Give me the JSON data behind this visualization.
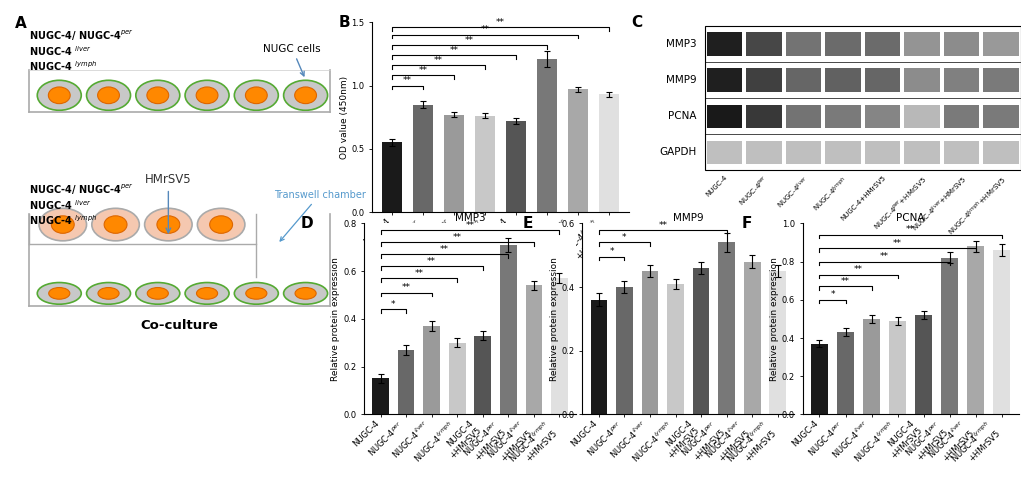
{
  "panel_B": {
    "ylabel": "OD value (450nm)",
    "ylim": [
      0,
      1.5
    ],
    "yticks": [
      0.0,
      0.5,
      1.0,
      1.5
    ],
    "categories": [
      "NUGC-4",
      "NUGC-4$^{per}$",
      "NUGC-4$^{liver}$",
      "NUGC-4$^{lymph}$",
      "NUGC-4\n+HMrSV5",
      "NUGC-4$^{per}$\n+HMrSV5",
      "NUGC-4$^{liver}$\n+HMrSV5",
      "NUGC-4$^{lymph}$\n+HMrSV5"
    ],
    "values": [
      0.55,
      0.85,
      0.77,
      0.76,
      0.72,
      1.21,
      0.97,
      0.93
    ],
    "errors": [
      0.03,
      0.03,
      0.02,
      0.02,
      0.02,
      0.06,
      0.02,
      0.02
    ],
    "colors": [
      "#1a1a1a",
      "#686868",
      "#9a9a9a",
      "#c8c8c8",
      "#555555",
      "#787878",
      "#a8a8a8",
      "#e0e0e0"
    ],
    "sig_brackets": [
      [
        0,
        1,
        "**",
        1.0
      ],
      [
        0,
        2,
        "**",
        1.08
      ],
      [
        0,
        3,
        "**",
        1.16
      ],
      [
        0,
        4,
        "**",
        1.24
      ],
      [
        0,
        5,
        "**",
        1.32
      ],
      [
        0,
        6,
        "**",
        1.4
      ],
      [
        0,
        7,
        "**",
        1.46
      ]
    ]
  },
  "panel_D": {
    "title": "MMP3",
    "panel_label": "D",
    "ylabel": "Relative protein expression",
    "ylim": [
      0,
      0.8
    ],
    "yticks": [
      0.0,
      0.2,
      0.4,
      0.6,
      0.8
    ],
    "categories": [
      "NUGC-4",
      "NUGC-4$^{per}$",
      "NUGC-4$^{liver}$",
      "NUGC-4$^{lymph}$",
      "NUGC-4\n+HMrSV5",
      "NUGC-4$^{per}$\n+HMrSV5",
      "NUGC-4$^{liver}$\n+HMrSV5",
      "NUGC-4$^{lymph}$\n+HMrSV5"
    ],
    "values": [
      0.15,
      0.27,
      0.37,
      0.3,
      0.33,
      0.71,
      0.54,
      0.57
    ],
    "errors": [
      0.02,
      0.02,
      0.02,
      0.02,
      0.02,
      0.03,
      0.02,
      0.02
    ],
    "colors": [
      "#1a1a1a",
      "#686868",
      "#9a9a9a",
      "#c8c8c8",
      "#555555",
      "#787878",
      "#a8a8a8",
      "#e0e0e0"
    ],
    "sig_brackets": [
      [
        0,
        1,
        "*",
        0.44
      ],
      [
        0,
        2,
        "**",
        0.51
      ],
      [
        0,
        3,
        "**",
        0.57
      ],
      [
        0,
        4,
        "**",
        0.62
      ],
      [
        0,
        5,
        "**",
        0.67
      ],
      [
        0,
        6,
        "**",
        0.72
      ],
      [
        0,
        7,
        "**",
        0.77
      ]
    ]
  },
  "panel_E": {
    "title": "MMP9",
    "panel_label": "E",
    "ylabel": "Relative protein expression",
    "ylim": [
      0,
      0.6
    ],
    "yticks": [
      0.0,
      0.2,
      0.4,
      0.6
    ],
    "categories": [
      "NUGC-4",
      "NUGC-4$^{per}$",
      "NUGC-4$^{liver}$",
      "NUGC-4$^{lymph}$",
      "NUGC-4\n+HMrSV5",
      "NUGC-4$^{per}$\n+HMrSV5",
      "NUGC-4$^{liver}$\n+HMrSV5",
      "NUGC-4$^{lymph}$\n+HMrSV5"
    ],
    "values": [
      0.36,
      0.4,
      0.45,
      0.41,
      0.46,
      0.54,
      0.48,
      0.45
    ],
    "errors": [
      0.02,
      0.02,
      0.02,
      0.015,
      0.02,
      0.03,
      0.02,
      0.02
    ],
    "colors": [
      "#1a1a1a",
      "#686868",
      "#9a9a9a",
      "#c8c8c8",
      "#555555",
      "#787878",
      "#a8a8a8",
      "#e0e0e0"
    ],
    "sig_brackets": [
      [
        0,
        1,
        "*",
        0.495
      ],
      [
        0,
        2,
        "*",
        0.54
      ],
      [
        0,
        5,
        "**",
        0.578
      ]
    ]
  },
  "panel_F": {
    "title": "PCNA",
    "panel_label": "F",
    "ylabel": "Relative protein expression",
    "ylim": [
      0,
      1.0
    ],
    "yticks": [
      0.0,
      0.2,
      0.4,
      0.6,
      0.8,
      1.0
    ],
    "categories": [
      "NUGC-4",
      "NUGC-4$^{per}$",
      "NUGC-4$^{liver}$",
      "NUGC-4$^{lymph}$",
      "NUGC-4\n+HMrSV5",
      "NUGC-4$^{per}$\n+HMrSV5",
      "NUGC-4$^{liver}$\n+HMrSV5",
      "NUGC-4$^{lymph}$\n+HMrSV5"
    ],
    "values": [
      0.37,
      0.43,
      0.5,
      0.49,
      0.52,
      0.82,
      0.88,
      0.86
    ],
    "errors": [
      0.02,
      0.02,
      0.02,
      0.02,
      0.02,
      0.03,
      0.03,
      0.03
    ],
    "colors": [
      "#1a1a1a",
      "#686868",
      "#9a9a9a",
      "#c8c8c8",
      "#555555",
      "#787878",
      "#a8a8a8",
      "#e0e0e0"
    ],
    "sig_brackets": [
      [
        0,
        1,
        "*",
        0.6
      ],
      [
        0,
        2,
        "**",
        0.67
      ],
      [
        0,
        3,
        "**",
        0.73
      ],
      [
        0,
        5,
        "**",
        0.8
      ],
      [
        0,
        6,
        "**",
        0.87
      ],
      [
        0,
        7,
        "**",
        0.94
      ]
    ]
  },
  "panel_label_fontsize": 11,
  "tick_fontsize": 6.0,
  "ylabel_fontsize": 6.5,
  "title_fontsize": 7.5,
  "sig_fontsize": 6.5,
  "background_color": "#ffffff",
  "wb_lane_labels": [
    "NUGC-4",
    "NUGC-4$^{per}$",
    "NUGC-4$^{liver}$",
    "NUGC-4$^{lymph}$",
    "NUGC-4+HMrSV5",
    "NUGC-4$^{per}$+HMrSV5",
    "NUGC-4$^{liver}$+HMrSV5",
    "NUGC-4$^{lymph}$+HMrSV5"
  ],
  "wb_protein_labels": [
    "MMP3",
    "MMP9",
    "PCNA",
    "GAPDH"
  ],
  "wb_band_intensities": {
    "MMP3": [
      0.88,
      0.72,
      0.55,
      0.58,
      0.58,
      0.42,
      0.45,
      0.4
    ],
    "MMP9": [
      0.88,
      0.75,
      0.6,
      0.62,
      0.6,
      0.45,
      0.5,
      0.52
    ],
    "PCNA": [
      0.9,
      0.78,
      0.55,
      0.52,
      0.48,
      0.28,
      0.52,
      0.52
    ],
    "GAPDH": [
      0.25,
      0.25,
      0.25,
      0.25,
      0.25,
      0.25,
      0.25,
      0.25
    ]
  }
}
